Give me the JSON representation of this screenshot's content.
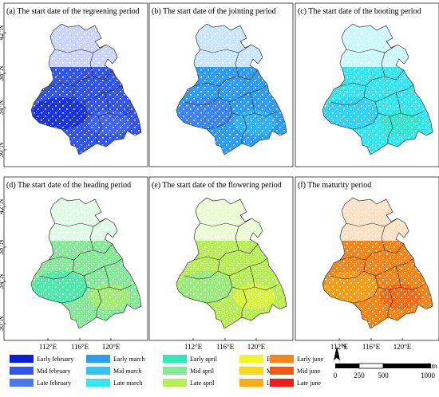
{
  "panels": [
    {
      "title": "(a) The start date of the regreening period",
      "class_index": 1
    },
    {
      "title": "(b) The start date of the jointing period",
      "class_index": 3
    },
    {
      "title": "(c) The start date of the booting period",
      "class_index": 5
    },
    {
      "title": "(d) The start date of the heading period",
      "class_index": 7
    },
    {
      "title": "(e) The start date of the flowering period",
      "class_index": 8
    },
    {
      "title": "(f) The maturity period",
      "class_index": 12
    }
  ],
  "lat_ticks": [
    "42°N",
    "38°N",
    "34°N",
    "30°N"
  ],
  "lon_ticks": [
    "112°E",
    "116°E",
    "120°E"
  ],
  "legend": {
    "items": [
      {
        "label": "Early february",
        "color": "#0a1fd6"
      },
      {
        "label": "Mid february",
        "color": "#3355e8"
      },
      {
        "label": "Late february",
        "color": "#4a77f2"
      },
      {
        "label": "Early march",
        "color": "#2f9cf4"
      },
      {
        "label": "Mid march",
        "color": "#33c4f4"
      },
      {
        "label": "Late march",
        "color": "#35e6f0"
      },
      {
        "label": "Early april",
        "color": "#2ee8b8"
      },
      {
        "label": "Mid april",
        "color": "#86e99a"
      },
      {
        "label": "Late april",
        "color": "#b8ee55"
      },
      {
        "label": "Early may",
        "color": "#f2f52a"
      },
      {
        "label": "Mid may",
        "color": "#f5d81f"
      },
      {
        "label": "Late may",
        "color": "#f5ad1a"
      },
      {
        "label": "Early june",
        "color": "#f2861a"
      },
      {
        "label": "Mid june",
        "color": "#f05a16"
      },
      {
        "label": "Late june",
        "color": "#ee1c1c"
      }
    ]
  },
  "scale_bar": {
    "labels": [
      "0",
      "250",
      "500",
      "1000"
    ],
    "unit": "km"
  },
  "north_arrow": {
    "label": "N"
  }
}
